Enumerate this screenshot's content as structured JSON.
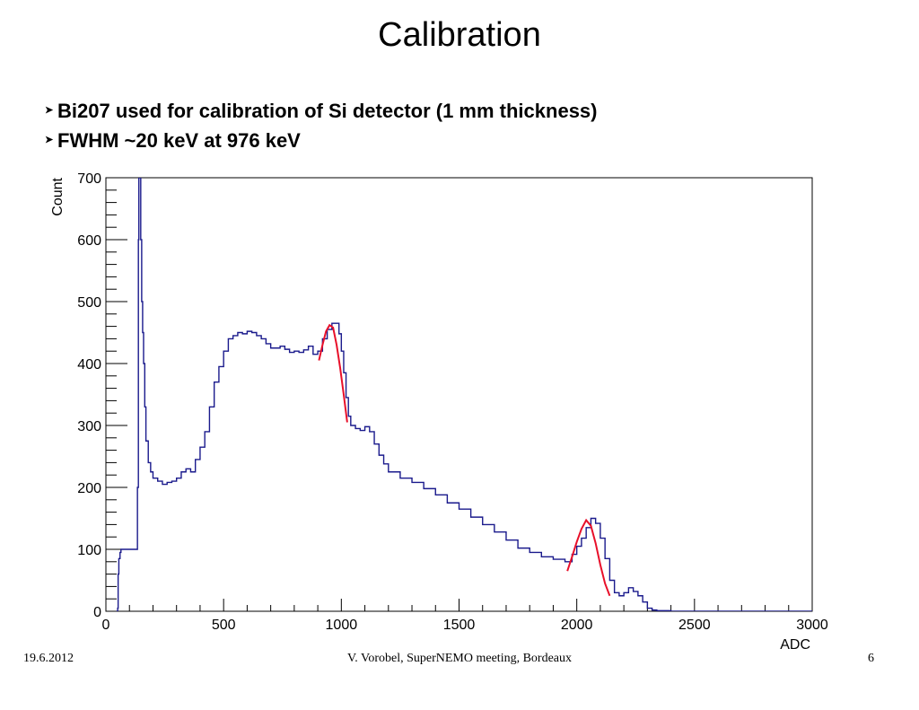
{
  "slide": {
    "title": "Calibration",
    "bullets": [
      "Bi207 used for calibration of Si detector (1 mm thickness)",
      "FWHM ~20 keV at 976 keV"
    ],
    "bullet_icon": "arrowhead-bullet-icon"
  },
  "footer": {
    "date": "19.6.2012",
    "center": "V. Vorobel, SuperNEMO meeting, Bordeaux",
    "page": "6"
  },
  "chart_data": {
    "type": "line",
    "title": "",
    "xlabel": "ADC",
    "ylabel": "Count",
    "xlim": [
      0,
      3000
    ],
    "ylim": [
      0,
      700
    ],
    "xticks": [
      0,
      500,
      1000,
      1500,
      2000,
      2500,
      3000
    ],
    "yticks": [
      0,
      100,
      200,
      300,
      400,
      500,
      600,
      700
    ],
    "grid": false,
    "colors": {
      "histogram": "#1a1a8c",
      "fit": "#e8102a",
      "axis": "#000000"
    },
    "series": [
      {
        "kind": "histogram",
        "x": [
          45,
          50,
          52,
          55,
          60,
          64,
          70,
          80,
          90,
          100,
          110,
          120,
          128,
          132,
          134,
          138,
          140,
          144,
          148,
          152,
          156,
          160,
          165,
          170,
          180,
          190,
          200,
          220,
          240,
          260,
          280,
          300,
          320,
          340,
          360,
          380,
          400,
          420,
          440,
          460,
          480,
          500,
          520,
          540,
          560,
          580,
          600,
          620,
          640,
          660,
          680,
          700,
          720,
          740,
          760,
          780,
          800,
          820,
          840,
          860,
          880,
          900,
          920,
          940,
          960,
          975,
          990,
          1000,
          1010,
          1020,
          1030,
          1040,
          1060,
          1080,
          1100,
          1120,
          1140,
          1160,
          1180,
          1200,
          1250,
          1300,
          1350,
          1400,
          1450,
          1500,
          1550,
          1600,
          1650,
          1700,
          1750,
          1800,
          1850,
          1900,
          1950,
          1980,
          2000,
          2020,
          2040,
          2060,
          2080,
          2100,
          2120,
          2140,
          2160,
          2180,
          2200,
          2220,
          2240,
          2260,
          2280,
          2300,
          2320,
          2340,
          2400,
          2500,
          3000
        ],
        "y": [
          0,
          5,
          60,
          85,
          95,
          100,
          100,
          100,
          100,
          100,
          100,
          100,
          100,
          100,
          200,
          600,
          700,
          700,
          600,
          500,
          450,
          400,
          330,
          275,
          240,
          225,
          215,
          210,
          205,
          208,
          210,
          215,
          225,
          230,
          225,
          245,
          265,
          290,
          330,
          370,
          395,
          420,
          440,
          445,
          450,
          448,
          452,
          450,
          445,
          440,
          432,
          425,
          425,
          428,
          423,
          418,
          420,
          418,
          422,
          428,
          415,
          420,
          440,
          455,
          465,
          465,
          448,
          420,
          385,
          345,
          315,
          300,
          295,
          292,
          298,
          290,
          270,
          252,
          238,
          225,
          215,
          208,
          198,
          188,
          175,
          165,
          152,
          140,
          128,
          115,
          102,
          95,
          88,
          84,
          80,
          92,
          105,
          118,
          135,
          150,
          142,
          118,
          85,
          50,
          30,
          25,
          30,
          38,
          32,
          25,
          15,
          5,
          2,
          1,
          0,
          0,
          0
        ]
      },
      {
        "name": "",
        "kind": "fit",
        "x": [
          905,
          920,
          935,
          950,
          965,
          980,
          995,
          1010,
          1025
        ],
        "y": [
          405,
          430,
          452,
          462,
          458,
          430,
          393,
          350,
          305
        ]
      },
      {
        "name": "",
        "kind": "fit",
        "x": [
          1960,
          1980,
          2000,
          2020,
          2040,
          2060,
          2080,
          2100,
          2120,
          2140
        ],
        "y": [
          65,
          88,
          112,
          133,
          147,
          138,
          110,
          75,
          45,
          25
        ]
      }
    ]
  }
}
